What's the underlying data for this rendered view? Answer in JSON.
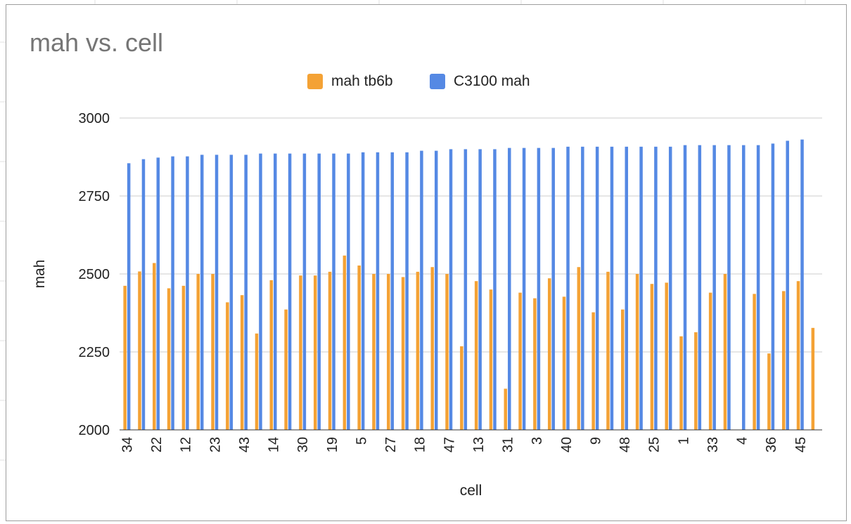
{
  "chart_data": {
    "type": "bar",
    "title": "mah vs. cell",
    "xlabel": "cell",
    "ylabel": "mah",
    "ylim": [
      2000,
      3000
    ],
    "yticks": [
      2000,
      2250,
      2500,
      2750,
      3000
    ],
    "grid": true,
    "legend_position": "top",
    "categories": [
      "34",
      "",
      "22",
      "",
      "12",
      "",
      "23",
      "",
      "43",
      "",
      "14",
      "",
      "30",
      "",
      "19",
      "",
      "5",
      "",
      "27",
      "",
      "18",
      "",
      "47",
      "",
      "13",
      "",
      "31",
      "",
      "3",
      "",
      "40",
      "",
      "9",
      "",
      "48",
      "",
      "25",
      "",
      "1",
      "",
      "33",
      "",
      "4",
      "",
      "36",
      "",
      "45",
      ""
    ],
    "series": [
      {
        "name": "mah tb6b",
        "color": "#f4a235",
        "values": [
          2462,
          2508,
          2535,
          2454,
          2462,
          2500,
          2500,
          2409,
          2432,
          2309,
          2480,
          2386,
          2495,
          2495,
          2507,
          2559,
          2527,
          2500,
          2500,
          2490,
          2507,
          2522,
          2500,
          2268,
          2477,
          2450,
          2132,
          2440,
          2422,
          2486,
          2427,
          2522,
          2377,
          2507,
          2386,
          2500,
          2468,
          2472,
          2300,
          2313,
          2440,
          2500,
          null,
          2436,
          2245,
          2445,
          2477,
          2327
        ]
      },
      {
        "name": "C3100 mah",
        "color": "#5589e4",
        "values": [
          2855,
          2868,
          2873,
          2877,
          2877,
          2882,
          2882,
          2882,
          2882,
          2886,
          2886,
          2886,
          2886,
          2886,
          2886,
          2886,
          2890,
          2890,
          2890,
          2890,
          2895,
          2895,
          2900,
          2900,
          2900,
          2900,
          2904,
          2904,
          2904,
          2904,
          2908,
          2908,
          2908,
          2908,
          2908,
          2908,
          2908,
          2908,
          2913,
          2913,
          2913,
          2913,
          2913,
          2913,
          2918,
          2927,
          2931,
          null
        ]
      }
    ]
  }
}
